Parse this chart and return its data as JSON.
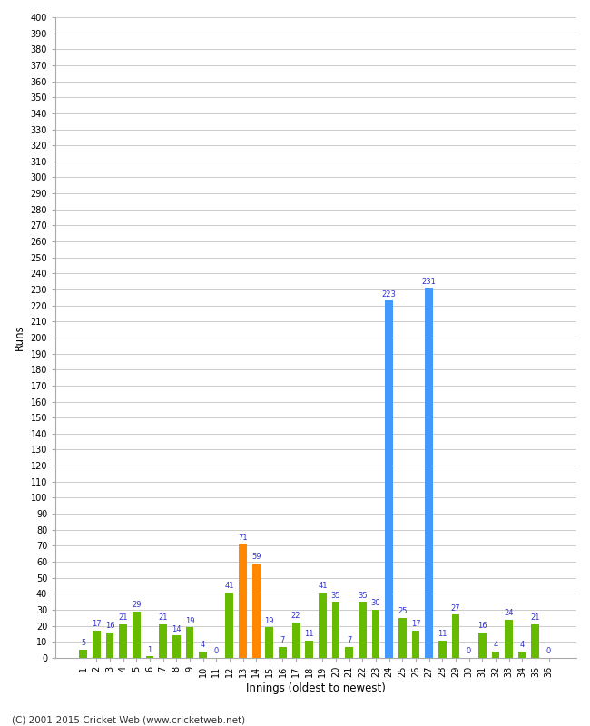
{
  "xlabel": "Innings (oldest to newest)",
  "ylabel": "Runs",
  "innings": [
    1,
    2,
    3,
    4,
    5,
    6,
    7,
    8,
    9,
    10,
    11,
    12,
    13,
    14,
    15,
    16,
    17,
    18,
    19,
    20,
    21,
    22,
    23,
    24,
    25,
    26,
    27,
    28,
    29,
    30,
    31,
    32,
    33,
    34,
    35,
    36
  ],
  "values": [
    5,
    17,
    16,
    21,
    29,
    1,
    21,
    14,
    19,
    4,
    0,
    41,
    71,
    59,
    19,
    7,
    22,
    11,
    41,
    35,
    7,
    35,
    30,
    223,
    25,
    17,
    231,
    11,
    27,
    0,
    16,
    4,
    24,
    4,
    21,
    0
  ],
  "colors": [
    "#66bb00",
    "#66bb00",
    "#66bb00",
    "#66bb00",
    "#66bb00",
    "#66bb00",
    "#66bb00",
    "#66bb00",
    "#66bb00",
    "#66bb00",
    "#66bb00",
    "#66bb00",
    "#ff8800",
    "#ff8800",
    "#66bb00",
    "#66bb00",
    "#66bb00",
    "#66bb00",
    "#66bb00",
    "#66bb00",
    "#66bb00",
    "#66bb00",
    "#66bb00",
    "#4499ff",
    "#66bb00",
    "#66bb00",
    "#4499ff",
    "#66bb00",
    "#66bb00",
    "#66bb00",
    "#66bb00",
    "#66bb00",
    "#66bb00",
    "#66bb00",
    "#66bb00",
    "#66bb00"
  ],
  "ylim": [
    0,
    400
  ],
  "background_color": "#ffffff",
  "grid_color": "#cccccc",
  "label_color": "#3333cc",
  "footer": "(C) 2001-2015 Cricket Web (www.cricketweb.net)"
}
